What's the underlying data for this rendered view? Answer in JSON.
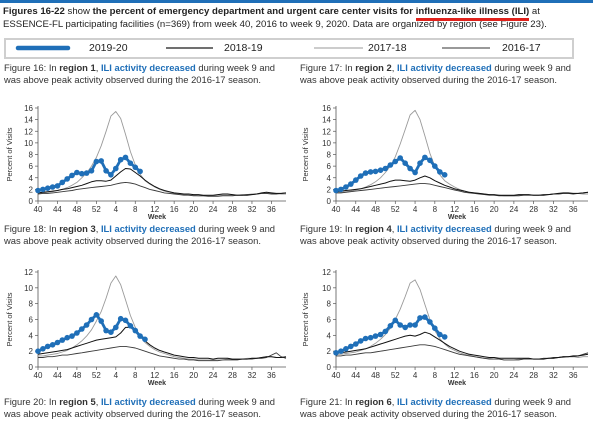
{
  "intro": {
    "prefix": "Figures 16-22",
    "part1": " show ",
    "bold1": "the percent of emergency department and urgent care center visits for",
    "ili": "influenza-like illness (ILI)",
    "part2": " at ESSENCE-FL participating facilities (n=369) from week 40, 2016 to week 9, 2020. Data are organized by region (see Figure 23)."
  },
  "legend": [
    {
      "label": "2019-20",
      "color": "#1f6fb8",
      "width": 4
    },
    {
      "label": "2018-19",
      "color": "#1a1a1a",
      "width": 1.2
    },
    {
      "label": "2017-18",
      "color": "#9a9a9a",
      "width": 1
    },
    {
      "label": "2016-17",
      "color": "#333333",
      "width": 1
    }
  ],
  "captions": [
    {
      "fig": "Figure 16: In ",
      "region": "region 1",
      "sep": ", ",
      "ili": "ILI activity decreased",
      "rest": " during week 9 and was above peak activity observed during the 2016-17 season."
    },
    {
      "fig": "Figure 17: In ",
      "region": "region 2",
      "sep": ", ",
      "ili": "ILI activity decreased",
      "rest": " during week 9 and was above peak activity observed during the 2016-17 season."
    },
    {
      "fig": "Figure 18: In ",
      "region": "region 3",
      "sep": ", ",
      "ili": "ILI activity decreased",
      "rest": " during week 9 and was above peak activity observed during the 2016-17 season."
    },
    {
      "fig": "Figure 19: In ",
      "region": "region 4",
      "sep": ", ",
      "ili": "ILI activity decreased",
      "rest": " during week 9 and was above peak activity observed during the 2016-17 season."
    },
    {
      "fig": "Figure 20: In ",
      "region": "region 5",
      "sep": ", ",
      "ili": "ILI activity decreased",
      "rest": " during week 9 and was above peak activity observed during the 2016-17 season."
    },
    {
      "fig": "Figure 21: In ",
      "region": "region 6",
      "sep": ", ",
      "ili": "ILI activity decreased",
      "rest": " during week 9 and was above peak activity observed during the 2016-17 season."
    }
  ],
  "chart_data": [
    {
      "type": "line",
      "id": "region-1",
      "xlabel": "Week",
      "ylabel": "Percent of Visits",
      "xticks": [
        "40",
        "44",
        "48",
        "52",
        "4",
        "8",
        "12",
        "16",
        "20",
        "24",
        "28",
        "32",
        "36"
      ],
      "ylim": [
        0,
        16
      ],
      "yticks": [
        0,
        2,
        4,
        6,
        8,
        10,
        12,
        14,
        16
      ],
      "series": [
        {
          "name": "2019-20",
          "values": [
            1.8,
            2.0,
            2.2,
            2.4,
            2.6,
            3.2,
            3.8,
            4.4,
            4.9,
            4.7,
            4.8,
            5.2,
            6.8,
            6.9,
            5.2,
            4.5,
            5.6,
            7.1,
            7.5,
            6.5,
            5.8,
            5.1
          ]
        },
        {
          "name": "2018-19",
          "values": [
            1.4,
            1.5,
            1.6,
            1.7,
            1.8,
            2.0,
            2.1,
            2.3,
            2.5,
            2.7,
            3.0,
            3.3,
            3.5,
            3.5,
            3.4,
            3.6,
            4.3,
            5.0,
            5.6,
            5.5,
            4.9,
            4.3,
            3.6,
            3.0,
            2.5,
            2.1,
            1.8,
            1.6,
            1.4,
            1.3,
            1.2,
            1.2,
            1.1,
            1.1,
            1.0,
            1.0,
            1.0,
            1.1,
            1.2,
            1.2,
            1.1,
            1.0,
            1.0,
            1.0,
            1.1,
            1.2,
            1.4,
            1.5,
            1.4,
            1.3,
            1.3,
            1.4
          ]
        },
        {
          "name": "2017-18",
          "values": [
            1.3,
            1.4,
            1.5,
            1.6,
            1.8,
            2.0,
            2.3,
            2.7,
            3.2,
            4.0,
            4.8,
            6.0,
            7.5,
            9.5,
            12.0,
            14.6,
            15.4,
            14.2,
            11.5,
            8.5,
            6.2,
            4.6,
            3.5,
            2.9,
            2.4,
            2.0,
            1.7,
            1.5,
            1.3,
            1.2,
            1.1,
            1.0,
            1.0,
            0.9,
            0.9,
            0.9,
            0.9,
            1.0,
            1.0,
            1.0,
            1.0,
            1.0,
            1.1,
            1.1,
            1.2,
            1.2,
            1.3,
            1.3,
            1.3,
            1.3,
            1.2,
            1.2
          ]
        },
        {
          "name": "2016-17",
          "values": [
            1.2,
            1.3,
            1.3,
            1.4,
            1.5,
            1.6,
            1.7,
            1.8,
            2.0,
            2.1,
            2.2,
            2.3,
            2.4,
            2.5,
            2.6,
            2.7,
            2.9,
            3.1,
            3.2,
            3.1,
            2.9,
            2.6,
            2.3,
            2.0,
            1.8,
            1.6,
            1.4,
            1.3,
            1.2,
            1.1,
            1.0,
            1.0,
            0.9,
            0.9,
            0.9,
            0.8,
            0.8,
            0.8,
            0.9,
            0.9,
            0.9,
            1.0,
            1.0,
            1.1,
            1.1,
            1.2,
            1.3,
            1.3,
            1.2,
            1.2,
            1.3,
            1.4
          ]
        }
      ]
    },
    {
      "type": "line",
      "id": "region-2",
      "xlabel": "Week",
      "ylabel": "Percent of Visits",
      "xticks": [
        "40",
        "44",
        "48",
        "52",
        "4",
        "8",
        "12",
        "16",
        "20",
        "24",
        "28",
        "32",
        "36"
      ],
      "ylim": [
        0,
        16
      ],
      "yticks": [
        0,
        2,
        4,
        6,
        8,
        10,
        12,
        14,
        16
      ],
      "series": [
        {
          "name": "2019-20",
          "values": [
            1.8,
            2.0,
            2.4,
            2.9,
            3.6,
            4.3,
            4.8,
            5.0,
            5.1,
            5.3,
            5.6,
            6.2,
            6.8,
            7.4,
            6.5,
            5.6,
            4.9,
            6.5,
            7.5,
            7.0,
            6.0,
            5.0,
            4.5
          ]
        },
        {
          "name": "2018-19",
          "values": [
            1.6,
            1.7,
            1.8,
            1.9,
            2.0,
            2.1,
            2.3,
            2.5,
            2.7,
            2.9,
            3.1,
            3.4,
            3.6,
            3.6,
            3.5,
            3.4,
            3.6,
            4.0,
            4.3,
            4.0,
            3.5,
            3.1,
            2.7,
            2.4,
            2.1,
            1.9,
            1.7,
            1.5,
            1.4,
            1.3,
            1.2,
            1.1,
            1.1,
            1.0,
            1.0,
            1.0,
            1.0,
            1.1,
            1.1,
            1.1,
            1.0,
            1.0,
            1.0,
            1.1,
            1.2,
            1.3,
            1.4,
            1.4,
            1.3,
            1.3,
            1.4,
            1.5
          ]
        },
        {
          "name": "2017-18",
          "values": [
            1.5,
            1.5,
            1.6,
            1.7,
            1.9,
            2.1,
            2.4,
            2.8,
            3.3,
            4.0,
            4.9,
            6.0,
            7.6,
            9.8,
            12.3,
            14.8,
            15.6,
            14.0,
            11.2,
            8.2,
            6.0,
            4.5,
            3.5,
            2.9,
            2.4,
            2.0,
            1.7,
            1.5,
            1.4,
            1.3,
            1.2,
            1.1,
            1.0,
            1.0,
            0.9,
            0.9,
            0.9,
            1.0,
            1.0,
            1.0,
            1.0,
            1.0,
            1.1,
            1.1,
            1.2,
            1.2,
            1.3,
            1.3,
            1.3,
            1.3,
            1.2,
            1.2
          ]
        },
        {
          "name": "2016-17",
          "values": [
            1.4,
            1.4,
            1.5,
            1.6,
            1.7,
            1.8,
            1.9,
            2.0,
            2.1,
            2.2,
            2.3,
            2.4,
            2.5,
            2.6,
            2.7,
            2.8,
            2.9,
            3.0,
            3.0,
            2.9,
            2.7,
            2.5,
            2.3,
            2.1,
            1.9,
            1.7,
            1.5,
            1.4,
            1.3,
            1.2,
            1.1,
            1.0,
            1.0,
            0.9,
            0.9,
            0.9,
            0.9,
            0.9,
            1.0,
            1.0,
            1.0,
            1.0,
            1.1,
            1.1,
            1.2,
            1.2,
            1.3,
            1.3,
            1.2,
            1.3,
            1.4,
            1.5
          ]
        }
      ]
    },
    {
      "type": "line",
      "id": "region-3",
      "xlabel": "Week",
      "ylabel": "Percent of Visits",
      "xticks": [
        "40",
        "44",
        "48",
        "52",
        "4",
        "8",
        "12",
        "16",
        "20",
        "24",
        "28",
        "32",
        "36"
      ],
      "ylim": [
        0,
        12
      ],
      "yticks": [
        0,
        2,
        4,
        6,
        8,
        10,
        12
      ],
      "series": [
        {
          "name": "2019-20",
          "values": [
            2.0,
            2.3,
            2.6,
            2.8,
            3.1,
            3.4,
            3.7,
            3.9,
            4.3,
            4.8,
            5.3,
            6.0,
            6.6,
            5.8,
            4.6,
            4.4,
            5.0,
            6.1,
            5.9,
            5.2,
            4.6,
            3.9,
            3.5
          ]
        },
        {
          "name": "2018-19",
          "values": [
            1.6,
            1.7,
            1.8,
            1.9,
            2.0,
            2.1,
            2.2,
            2.4,
            2.6,
            2.8,
            3.0,
            3.2,
            3.4,
            3.5,
            3.6,
            3.7,
            3.8,
            4.3,
            5.0,
            5.0,
            4.5,
            3.9,
            3.3,
            2.8,
            2.4,
            2.1,
            1.9,
            1.7,
            1.5,
            1.4,
            1.3,
            1.2,
            1.2,
            1.1,
            1.1,
            1.1,
            1.0,
            1.1,
            1.1,
            1.1,
            1.0,
            1.0,
            1.0,
            1.0,
            1.1,
            1.1,
            1.2,
            1.3,
            1.3,
            1.2,
            1.2,
            1.3
          ]
        },
        {
          "name": "2017-18",
          "values": [
            1.4,
            1.4,
            1.5,
            1.6,
            1.7,
            1.9,
            2.1,
            2.4,
            2.8,
            3.3,
            3.9,
            4.7,
            5.8,
            7.0,
            8.7,
            10.6,
            11.5,
            10.4,
            8.5,
            6.5,
            5.0,
            3.9,
            3.1,
            2.6,
            2.2,
            1.9,
            1.7,
            1.5,
            1.3,
            1.2,
            1.1,
            1.0,
            1.0,
            0.9,
            0.9,
            0.9,
            0.9,
            0.9,
            0.9,
            1.0,
            1.0,
            1.0,
            1.0,
            1.1,
            1.1,
            1.1,
            1.2,
            1.3,
            1.3,
            1.2,
            1.2,
            1.2
          ]
        },
        {
          "name": "2016-17",
          "values": [
            1.2,
            1.2,
            1.3,
            1.3,
            1.4,
            1.5,
            1.5,
            1.6,
            1.7,
            1.8,
            1.9,
            2.0,
            2.1,
            2.2,
            2.3,
            2.4,
            2.5,
            2.6,
            2.6,
            2.5,
            2.4,
            2.2,
            2.0,
            1.8,
            1.6,
            1.4,
            1.3,
            1.2,
            1.1,
            1.0,
            1.0,
            0.9,
            0.9,
            0.8,
            0.8,
            0.8,
            0.8,
            0.8,
            0.9,
            0.9,
            0.9,
            0.9,
            1.0,
            1.0,
            1.0,
            1.1,
            1.1,
            1.2,
            1.5,
            1.8,
            1.3,
            1.1
          ]
        }
      ]
    },
    {
      "type": "line",
      "id": "region-4",
      "xlabel": "Week",
      "ylabel": "Percent of Visits",
      "xticks": [
        "40",
        "44",
        "48",
        "52",
        "4",
        "8",
        "12",
        "16",
        "20",
        "24",
        "28",
        "32",
        "36"
      ],
      "ylim": [
        0,
        12
      ],
      "yticks": [
        0,
        2,
        4,
        6,
        8,
        10,
        12
      ],
      "series": [
        {
          "name": "2019-20",
          "values": [
            1.8,
            2.0,
            2.3,
            2.6,
            2.9,
            3.3,
            3.6,
            3.7,
            3.9,
            4.1,
            4.5,
            5.2,
            5.9,
            5.3,
            5.0,
            5.3,
            5.3,
            6.2,
            6.3,
            5.7,
            4.9,
            4.1,
            3.8
          ]
        },
        {
          "name": "2018-19",
          "values": [
            1.7,
            1.8,
            1.9,
            2.0,
            2.1,
            2.2,
            2.3,
            2.5,
            2.7,
            2.9,
            3.1,
            3.3,
            3.5,
            3.7,
            3.9,
            4.0,
            3.9,
            4.1,
            4.4,
            4.2,
            3.8,
            3.4,
            3.0,
            2.6,
            2.3,
            2.0,
            1.8,
            1.6,
            1.5,
            1.4,
            1.3,
            1.2,
            1.2,
            1.1,
            1.1,
            1.1,
            1.1,
            1.1,
            1.1,
            1.1,
            1.0,
            1.0,
            1.0,
            1.1,
            1.1,
            1.2,
            1.3,
            1.3,
            1.4,
            1.4,
            1.5,
            1.6
          ]
        },
        {
          "name": "2017-18",
          "values": [
            1.6,
            1.6,
            1.7,
            1.8,
            1.9,
            2.1,
            2.3,
            2.6,
            3.0,
            3.5,
            4.1,
            4.9,
            6.0,
            7.3,
            8.9,
            10.6,
            11.0,
            9.8,
            7.9,
            6.0,
            4.6,
            3.6,
            2.9,
            2.4,
            2.1,
            1.8,
            1.6,
            1.5,
            1.3,
            1.2,
            1.1,
            1.1,
            1.0,
            1.0,
            0.9,
            0.9,
            0.9,
            1.0,
            1.0,
            1.0,
            1.0,
            1.0,
            1.1,
            1.1,
            1.1,
            1.2,
            1.2,
            1.3,
            1.3,
            1.2,
            1.3,
            1.3
          ]
        },
        {
          "name": "2016-17",
          "values": [
            1.4,
            1.4,
            1.5,
            1.5,
            1.6,
            1.7,
            1.8,
            1.8,
            1.9,
            2.0,
            2.1,
            2.2,
            2.3,
            2.4,
            2.5,
            2.6,
            2.7,
            2.8,
            2.8,
            2.7,
            2.6,
            2.4,
            2.2,
            2.0,
            1.8,
            1.6,
            1.5,
            1.4,
            1.3,
            1.2,
            1.1,
            1.0,
            1.0,
            1.0,
            0.9,
            0.9,
            0.9,
            0.9,
            1.0,
            1.0,
            1.0,
            1.0,
            1.1,
            1.1,
            1.2,
            1.2,
            1.3,
            1.3,
            1.3,
            1.4,
            1.6,
            1.8
          ]
        }
      ]
    }
  ]
}
